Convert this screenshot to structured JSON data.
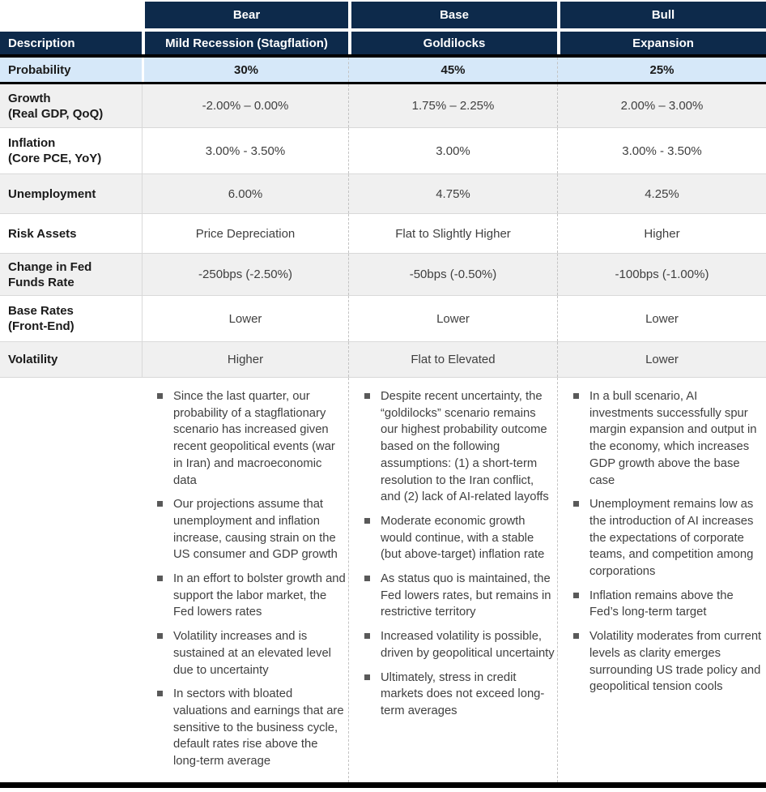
{
  "colors": {
    "navy_header": "#0d2a4b",
    "probability_blue": "#d6e8f9",
    "stripe_gray": "#f0f0f0",
    "row_border_gray": "#d9d9d9",
    "dashed_separator_gray": "#c3c3c3",
    "black_rule": "#000000",
    "label_text": "#1a1a1a",
    "value_text": "#3f3f3f",
    "bullet_square": "#595959",
    "header_text": "#ffffff"
  },
  "table": {
    "corner_label": "",
    "description_label": "Description",
    "scenarios": [
      {
        "name": "Bear",
        "description": "Mild Recession (Stagflation)"
      },
      {
        "name": "Base",
        "description": "Goldilocks"
      },
      {
        "name": "Bull",
        "description": "Expansion"
      }
    ],
    "probability_row": {
      "label": "Probability",
      "values": [
        "30%",
        "45%",
        "25%"
      ]
    },
    "metric_rows": [
      {
        "label": "Growth\n(Real GDP, QoQ)",
        "values": [
          "-2.00% – 0.00%",
          "1.75% – 2.25%",
          "2.00% – 3.00%"
        ]
      },
      {
        "label": "Inflation\n(Core PCE, YoY)",
        "values": [
          "3.00% - 3.50%",
          "3.00%",
          "3.00% - 3.50%"
        ]
      },
      {
        "label": "Unemployment",
        "values": [
          "6.00%",
          "4.75%",
          "4.25%"
        ]
      },
      {
        "label": "Risk Assets",
        "values": [
          "Price Depreciation",
          "Flat to Slightly Higher",
          "Higher"
        ]
      },
      {
        "label": "Change in Fed\nFunds Rate",
        "values": [
          "-250bps (-2.50%)",
          "-50bps (-0.50%)",
          "-100bps (-1.00%)"
        ]
      },
      {
        "label": "Base Rates\n(Front-End)",
        "values": [
          "Lower",
          "Lower",
          "Lower"
        ]
      },
      {
        "label": "Volatility",
        "values": [
          "Higher",
          "Flat to Elevated",
          "Lower"
        ]
      }
    ],
    "commentary": {
      "bear": [
        "Since the last quarter, our probability of a stagflationary scenario has increased given recent geopolitical events (war in Iran) and macroeconomic data",
        "Our projections assume that unemployment and inflation increase, causing strain on the US consumer and GDP growth",
        "In an effort to bolster growth and support the labor market, the Fed lowers rates",
        "Volatility increases and is sustained at an elevated level due to uncertainty",
        "In sectors with bloated valuations and earnings that are sensitive to the business cycle, default rates rise above the long-term average"
      ],
      "base": [
        "Despite recent uncertainty, the “goldilocks” scenario remains our highest probability outcome based on the following assumptions: (1) a short-term resolution to the Iran conflict, and (2) lack of AI-related layoffs",
        "Moderate economic growth would continue, with a stable (but above-target) inflation rate",
        "As status quo is maintained, the Fed lowers rates, but remains in restrictive territory",
        "Increased volatility is possible, driven by geopolitical uncertainty",
        "Ultimately, stress in credit markets does not exceed long-term averages"
      ],
      "bull": [
        "In a bull scenario, AI investments successfully spur margin expansion and output in the economy, which increases GDP growth above the base case",
        "Unemployment remains low as the introduction of AI increases the expectations of corporate teams, and competition among corporations",
        "Inflation remains above the Fed’s long-term target",
        "Volatility moderates from current levels as clarity emerges surrounding US trade policy and geopolitical tension cools"
      ]
    }
  }
}
